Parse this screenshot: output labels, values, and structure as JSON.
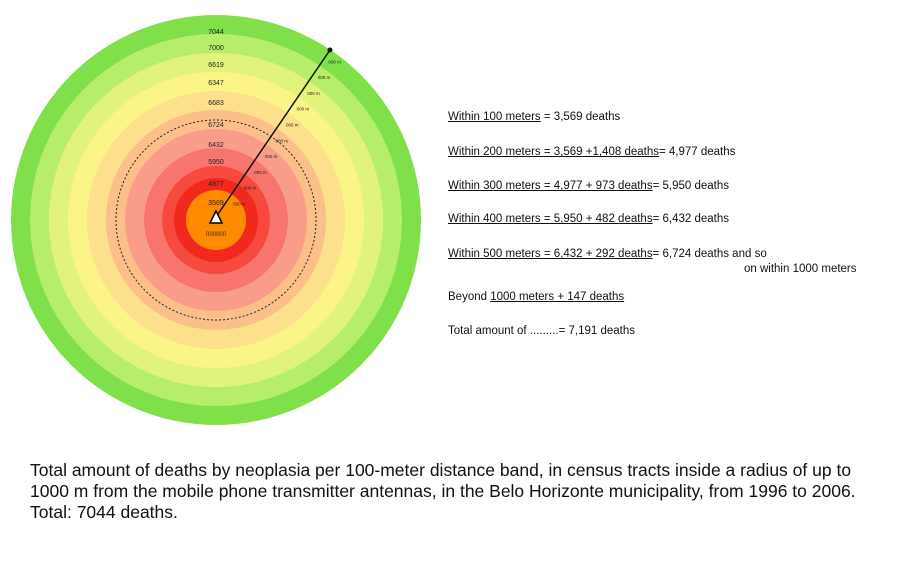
{
  "diagram": {
    "ring_labels": [
      "7044",
      "7000",
      "6619",
      "6347",
      "6683",
      "6724",
      "6432",
      "5950",
      "4977",
      "3569"
    ],
    "center_label": "000000",
    "marker_labels": [
      "000 m",
      "000 m",
      "000 m",
      "000 m",
      "000 m",
      "000 m",
      "000 m",
      "000 m",
      "000 m",
      "000 m"
    ],
    "ring_colors": [
      "#7fe04a",
      "#b6ee6c",
      "#e2f37c",
      "#fbf588",
      "#fce08c",
      "#fbc08a",
      "#fa9c8a",
      "#f7756e",
      "#f54a3d",
      "#f0281e"
    ],
    "center_color": "#ff8a00"
  },
  "stats": [
    {
      "a": "Within    100 meters",
      "b": " = 3,569 deaths"
    },
    {
      "a": "Within    200 meters  =  3,569 +1,408 deaths",
      "b": "= 4,977 deaths"
    },
    {
      "a": "Within    300 meters  =  4,977 +   973 deaths",
      "b": "=  5,950 deaths"
    },
    {
      "a": "Within    400 meters  = 5,950  +  482 deaths",
      "b": "=  6,432 deaths"
    },
    {
      "a": "Within    500 meters  = 6,432  +   292 deaths",
      "b": "=  6,724 deaths and so"
    },
    {
      "a": "",
      "b": "on within 1000 meters"
    },
    {
      "a": "Beyond ",
      "b": "1000 meters  +  147 deaths"
    },
    {
      "a": "Total amount of .........= 7,191 deaths",
      "b": ""
    }
  ],
  "caption": "Total amount of deaths by neoplasia per 100-meter distance band, in census tracts inside a radius of up to 1000 m from the mobile phone transmitter antennas, in the Belo Horizonte municipality, from 1996 to 2006. Total: 7044 deaths."
}
